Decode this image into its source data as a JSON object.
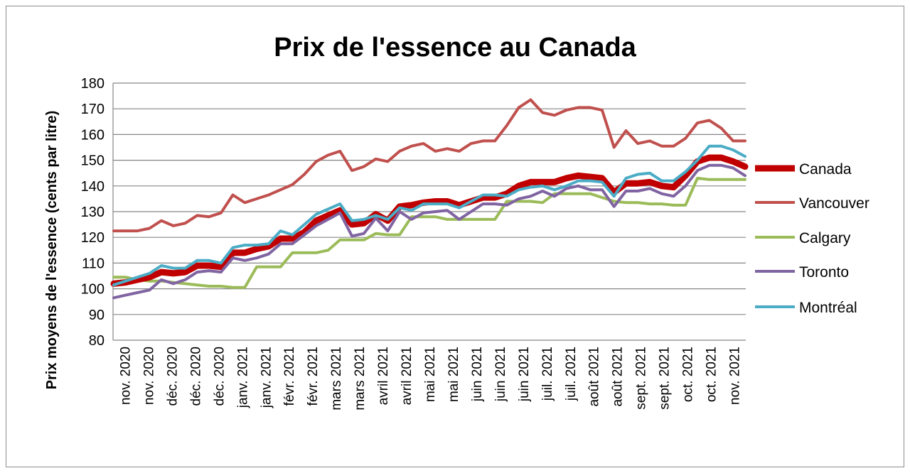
{
  "chart_data": {
    "type": "line",
    "title": "Prix de l'essence au Canada",
    "xlabel": "",
    "ylabel": "Prix moyens de l'essence (cents par litre)",
    "ylim": [
      80,
      180
    ],
    "yticks": [
      80,
      90,
      100,
      110,
      120,
      130,
      140,
      150,
      160,
      170,
      180
    ],
    "grid": "horizontal",
    "legend_position": "right",
    "x_tick_labels": [
      "nov. 2020",
      "nov. 2020",
      "déc. 2020",
      "déc. 2020",
      "déc. 2020",
      "janv. 2021",
      "janv. 2021",
      "févr. 2021",
      "févr. 2021",
      "mars 2021",
      "mars 2021",
      "avril 2021",
      "avril 2021",
      "mai 2021",
      "mai 2021",
      "juin 2021",
      "juin 2021",
      "juin 2021",
      "juil. 2021",
      "juil. 2021",
      "août 2021",
      "août 2021",
      "sept. 2021",
      "sept. 2021",
      "oct. 2021",
      "oct. 2021",
      "nov. 2021"
    ],
    "series": [
      {
        "name": "Canada",
        "color": "#c00000",
        "width": 9,
        "values": [
          102,
          102.5,
          103.5,
          104.5,
          106.5,
          106,
          106.5,
          109,
          109,
          108.5,
          114,
          114,
          115.5,
          116.5,
          119.5,
          119.5,
          122,
          126.5,
          128.5,
          130.5,
          125,
          125.5,
          129,
          126.5,
          132,
          132.5,
          133.5,
          134,
          134,
          132.5,
          134,
          135.5,
          135.5,
          137,
          140,
          141.5,
          141.5,
          141.5,
          143,
          144,
          143.5,
          143,
          137.5,
          141,
          141,
          141.5,
          140,
          139.5,
          144,
          149.5,
          151,
          151,
          149.5,
          147.5
        ]
      },
      {
        "name": "Vancouver",
        "color": "#c0504d",
        "width": 4,
        "values": [
          122.5,
          122.5,
          122.5,
          123.5,
          126.5,
          124.5,
          125.5,
          128.5,
          128,
          129.5,
          136.5,
          133.5,
          135,
          136.5,
          138.5,
          140.5,
          144.5,
          149.5,
          152,
          153.5,
          146,
          147.5,
          150.5,
          149.5,
          153.5,
          155.5,
          156.5,
          153.5,
          154.5,
          153.5,
          156.5,
          157.5,
          157.5,
          163.5,
          170.5,
          173.5,
          168.5,
          167.5,
          169.5,
          170.5,
          170.5,
          169.5,
          155,
          161.5,
          156.5,
          157.5,
          155.5,
          155.5,
          158.5,
          164.5,
          165.5,
          162.5,
          157.5,
          157.5
        ]
      },
      {
        "name": "Calgary",
        "color": "#9bbb59",
        "width": 4,
        "values": [
          104.5,
          104.5,
          103.5,
          103,
          103,
          102.5,
          102,
          101.5,
          101,
          101,
          100.5,
          100.5,
          108.5,
          108.5,
          108.5,
          114,
          114,
          114,
          115,
          119,
          119,
          119,
          121.5,
          121,
          121,
          128,
          128,
          128,
          127,
          127,
          127,
          127,
          127,
          134,
          134,
          134,
          133.5,
          137,
          137,
          137,
          137,
          135.5,
          134,
          133.5,
          133.5,
          133,
          133,
          132.5,
          132.5,
          143,
          142.5,
          142.5,
          142.5,
          142.5
        ]
      },
      {
        "name": "Toronto",
        "color": "#8064a2",
        "width": 4,
        "values": [
          96.5,
          97.5,
          98.5,
          99.5,
          103.5,
          102,
          103.5,
          106.5,
          107,
          106.5,
          112,
          111,
          112,
          113.5,
          117.5,
          117.5,
          121,
          124.5,
          127,
          129.5,
          120.5,
          121.5,
          127.5,
          122.5,
          130,
          127,
          129.5,
          130,
          130.5,
          127,
          130,
          133,
          133,
          132.5,
          135,
          136,
          138,
          136,
          139,
          140,
          138.5,
          138.5,
          132,
          138,
          138,
          139,
          137,
          136,
          140,
          146,
          148,
          148,
          147,
          144
        ]
      },
      {
        "name": "Montréal",
        "color": "#4bacc6",
        "width": 4,
        "values": [
          101.5,
          103,
          104.5,
          106,
          109,
          108,
          108,
          111,
          111,
          110,
          116,
          117,
          117,
          117.5,
          122.5,
          121,
          125,
          129,
          131,
          133,
          126.5,
          127,
          128.5,
          127,
          131.5,
          130.5,
          133,
          133,
          133,
          131.5,
          134,
          136.5,
          136.5,
          136,
          138.5,
          139.5,
          140,
          138.5,
          140,
          142,
          142,
          141.5,
          136,
          143,
          144.5,
          145,
          142,
          142,
          145.5,
          150,
          155.5,
          155.5,
          154,
          151.5
        ]
      }
    ]
  }
}
